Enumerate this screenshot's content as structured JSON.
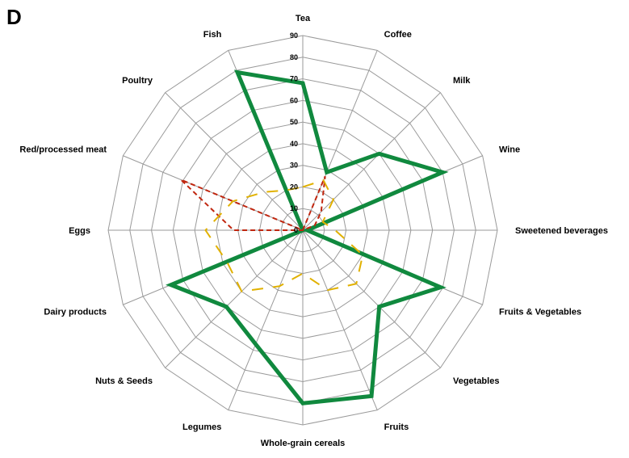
{
  "panel_label": "D",
  "chart_data": {
    "type": "radar",
    "axes": [
      "Tea",
      "Coffee",
      "Milk",
      "Wine",
      "Sweetened beverages",
      "Fruits & Vegetables",
      "Vegetables",
      "Fruits",
      "Whole-grain cereals",
      "Legumes",
      "Nuts & Seeds",
      "Dairy products",
      "Eggs",
      "Red/processed meat",
      "Poultry",
      "Fish"
    ],
    "ticks": [
      0,
      10,
      20,
      30,
      40,
      50,
      60,
      70,
      80,
      90
    ],
    "rmax": 90,
    "grid": true,
    "series": [
      {
        "style": "solid",
        "color": "#10893e",
        "values": [
          68,
          29,
          50,
          70,
          2,
          69,
          50,
          83,
          80,
          57,
          50,
          66,
          0,
          0,
          0,
          79
        ]
      },
      {
        "style": "dashed",
        "color": "#c0260f",
        "values": [
          0,
          27,
          12,
          6,
          0,
          0,
          0,
          0,
          0,
          0,
          0,
          0,
          32,
          61,
          0,
          0
        ]
      },
      {
        "style": "dashed",
        "color": "#e1b100",
        "values": [
          20,
          25,
          20,
          10,
          15,
          30,
          35,
          30,
          20,
          28,
          40,
          38,
          45,
          35,
          25,
          20
        ]
      }
    ]
  }
}
